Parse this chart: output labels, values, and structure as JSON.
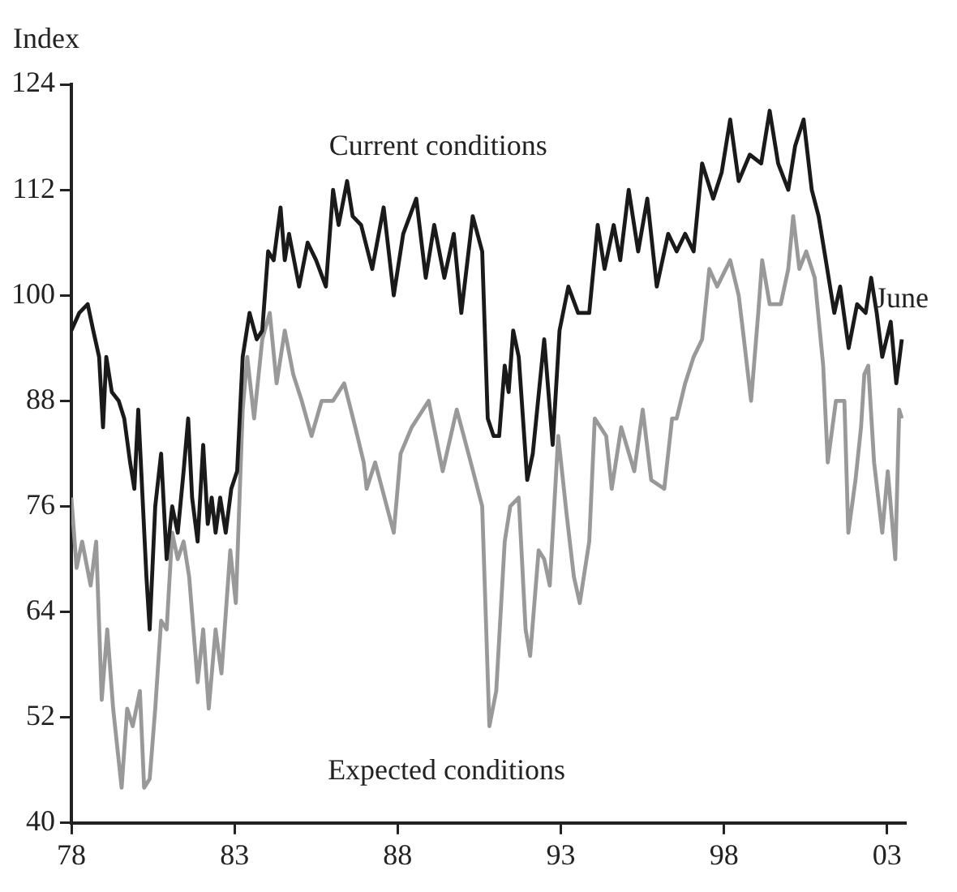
{
  "chart_data": {
    "type": "line",
    "ylabel": "Index",
    "xlim": [
      1978,
      2003.55
    ],
    "xticks": [
      {
        "value": 1978,
        "label": "78"
      },
      {
        "value": 1983,
        "label": "83"
      },
      {
        "value": 1988,
        "label": "88"
      },
      {
        "value": 1993,
        "label": "93"
      },
      {
        "value": 1998,
        "label": "98"
      },
      {
        "value": 2003,
        "label": "03"
      }
    ],
    "ylim": [
      40,
      124
    ],
    "yticks": [
      40,
      52,
      64,
      76,
      88,
      100,
      112,
      124
    ],
    "grid": false,
    "legend": false,
    "annotations": [
      {
        "text": "June",
        "x": 2003.45,
        "y": 94.5
      }
    ],
    "series": [
      {
        "name": "Current conditions",
        "color": "#1a1a1a",
        "x": [
          1978.0,
          1978.24,
          1978.5,
          1978.67,
          1978.85,
          1978.97,
          1979.07,
          1979.24,
          1979.45,
          1979.62,
          1979.8,
          1979.93,
          1980.05,
          1980.3,
          1980.4,
          1980.57,
          1980.75,
          1980.92,
          1981.09,
          1981.26,
          1981.44,
          1981.58,
          1981.7,
          1981.87,
          1982.04,
          1982.18,
          1982.3,
          1982.42,
          1982.56,
          1982.73,
          1982.9,
          1983.08,
          1983.25,
          1983.46,
          1983.68,
          1983.85,
          1984.03,
          1984.2,
          1984.41,
          1984.54,
          1984.67,
          1984.98,
          1985.24,
          1985.5,
          1985.8,
          1986.02,
          1986.19,
          1986.45,
          1986.62,
          1986.88,
          1987.22,
          1987.57,
          1987.88,
          1988.17,
          1988.57,
          1988.86,
          1989.12,
          1989.43,
          1989.72,
          1989.95,
          1990.3,
          1990.59,
          1990.76,
          1990.94,
          1991.11,
          1991.28,
          1991.4,
          1991.54,
          1991.71,
          1991.97,
          1992.14,
          1992.49,
          1992.75,
          1992.96,
          1993.23,
          1993.53,
          1993.87,
          1994.13,
          1994.34,
          1994.62,
          1994.82,
          1995.08,
          1995.37,
          1995.65,
          1995.94,
          1996.29,
          1996.55,
          1996.81,
          1997.07,
          1997.33,
          1997.67,
          1997.93,
          1998.19,
          1998.45,
          1998.79,
          1999.14,
          1999.4,
          1999.66,
          1999.97,
          2000.18,
          2000.44,
          2000.69,
          2000.9,
          2001.12,
          2001.38,
          2001.56,
          2001.82,
          2002.08,
          2002.34,
          2002.51,
          2002.68,
          2002.85,
          2003.11,
          2003.28,
          2003.45
        ],
        "values": [
          96,
          98,
          99,
          96,
          93,
          85,
          93,
          89,
          88,
          86,
          81,
          78,
          87,
          68,
          62,
          76,
          82,
          70,
          76,
          73,
          80,
          86,
          77,
          72,
          83,
          74,
          77,
          73,
          77,
          73,
          78,
          80,
          93,
          98,
          95,
          96,
          105,
          104,
          110,
          104,
          107,
          101,
          106,
          104,
          101,
          112,
          108,
          113,
          109,
          108,
          103,
          110,
          100,
          107,
          111,
          102,
          108,
          102,
          107,
          98,
          109,
          105,
          86,
          84,
          84,
          92,
          89,
          96,
          93,
          79,
          82,
          95,
          83,
          96,
          101,
          98,
          98,
          108,
          103,
          108,
          104,
          112,
          105,
          111,
          101,
          107,
          105,
          107,
          105,
          115,
          111,
          114,
          120,
          113,
          116,
          115,
          121,
          115,
          112,
          117,
          120,
          112,
          109,
          104,
          98,
          101,
          94,
          99,
          98,
          102,
          98,
          93,
          97,
          90,
          95
        ]
      },
      {
        "name": "Expected conditions",
        "color": "#999999",
        "x": [
          1978.0,
          1978.16,
          1978.33,
          1978.59,
          1978.76,
          1978.93,
          1979.1,
          1979.28,
          1979.54,
          1979.71,
          1979.88,
          1980.1,
          1980.23,
          1980.4,
          1980.57,
          1980.75,
          1980.92,
          1981.09,
          1981.26,
          1981.44,
          1981.61,
          1981.87,
          1982.04,
          1982.21,
          1982.42,
          1982.6,
          1982.87,
          1983.04,
          1983.25,
          1983.39,
          1983.6,
          1983.85,
          1984.08,
          1984.29,
          1984.54,
          1984.8,
          1985.06,
          1985.36,
          1985.67,
          1986.02,
          1986.36,
          1986.7,
          1986.96,
          1987.05,
          1987.31,
          1987.88,
          1988.09,
          1988.43,
          1988.95,
          1989.38,
          1989.81,
          1990.24,
          1990.59,
          1990.81,
          1991.02,
          1991.28,
          1991.45,
          1991.71,
          1991.92,
          1992.06,
          1992.32,
          1992.49,
          1992.66,
          1992.92,
          1993.18,
          1993.4,
          1993.58,
          1993.87,
          1994.04,
          1994.39,
          1994.56,
          1994.85,
          1995.25,
          1995.51,
          1995.77,
          1996.17,
          1996.41,
          1996.55,
          1996.81,
          1997.07,
          1997.33,
          1997.55,
          1997.79,
          1998.19,
          1998.45,
          1998.58,
          1998.83,
          1999.05,
          1999.17,
          1999.4,
          1999.74,
          1999.97,
          2000.12,
          2000.31,
          2000.52,
          2000.78,
          2001.04,
          2001.18,
          2001.43,
          2001.69,
          2001.81,
          2002.03,
          2002.2,
          2002.3,
          2002.42,
          2002.6,
          2002.85,
          2003.02,
          2003.25,
          2003.37,
          2003.45
        ],
        "values": [
          77,
          69,
          72,
          67,
          72,
          54,
          62,
          53,
          44,
          53,
          51,
          55,
          44,
          45,
          53,
          63,
          62,
          73,
          70,
          72,
          68,
          56,
          62,
          53,
          62,
          57,
          71,
          65,
          87,
          93,
          86,
          95,
          98,
          90,
          96,
          91,
          88,
          84,
          88,
          88,
          90,
          85,
          81,
          78,
          81,
          73,
          82,
          85,
          88,
          80,
          87,
          81,
          76,
          51,
          55,
          72,
          76,
          77,
          62,
          59,
          71,
          70,
          67,
          84,
          75,
          68,
          65,
          72,
          86,
          84,
          78,
          85,
          80,
          87,
          79,
          78,
          86,
          86,
          90,
          93,
          95,
          103,
          101,
          104,
          100,
          96,
          88,
          98,
          104,
          99,
          99,
          103,
          109,
          103,
          105,
          102,
          92,
          81,
          88,
          88,
          73,
          79,
          85,
          91,
          92,
          81,
          73,
          80,
          70,
          87,
          86
        ]
      }
    ]
  }
}
